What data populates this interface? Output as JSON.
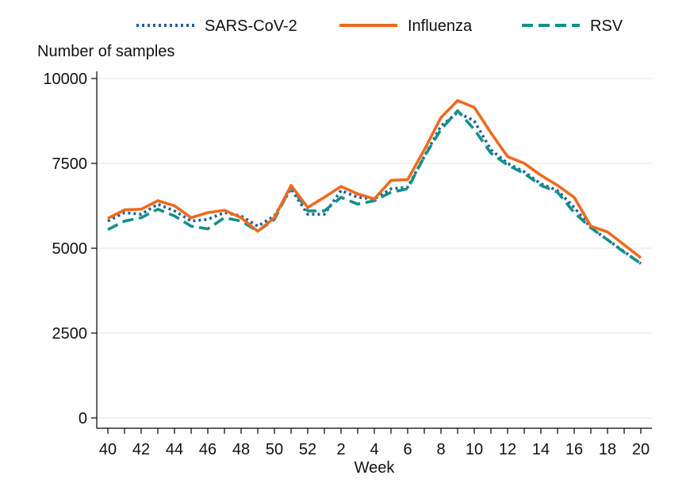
{
  "chart_data": {
    "type": "line",
    "title": "",
    "xlabel": "Week",
    "ylabel": "Number of samples",
    "ylim": [
      0,
      10000
    ],
    "yticks": [
      0,
      2500,
      5000,
      7500,
      10000
    ],
    "ytick_labels": [
      "0",
      "2500",
      "5000",
      "7500",
      "10000"
    ],
    "grid": "horizontal",
    "legend_position": "top",
    "x": [
      "40",
      "41",
      "42",
      "43",
      "44",
      "45",
      "46",
      "47",
      "48",
      "49",
      "50",
      "51",
      "52",
      "1",
      "2",
      "3",
      "4",
      "5",
      "6",
      "7",
      "8",
      "9",
      "10",
      "11",
      "12",
      "13",
      "14",
      "15",
      "16",
      "17",
      "18",
      "19",
      "20"
    ],
    "xtick_labels": [
      "40",
      "42",
      "44",
      "46",
      "48",
      "50",
      "52",
      "2",
      "4",
      "6",
      "8",
      "10",
      "12",
      "14",
      "16",
      "18",
      "20"
    ],
    "series": [
      {
        "name": "SARS-CoV-2",
        "color": "#1f5f9e",
        "dash": "dotted",
        "values": [
          5800,
          6050,
          6000,
          6300,
          6100,
          5800,
          5850,
          6050,
          5950,
          5650,
          5950,
          6750,
          6000,
          6000,
          6700,
          6500,
          6450,
          6750,
          6800,
          7700,
          8600,
          9000,
          8750,
          7900,
          7500,
          7250,
          6900,
          6700,
          6200,
          5600,
          5250,
          4900,
          4550
        ]
      },
      {
        "name": "Influenza",
        "color": "#ee6a1f",
        "dash": "solid",
        "values": [
          5880,
          6130,
          6150,
          6400,
          6250,
          5900,
          6050,
          6120,
          5900,
          5500,
          5900,
          6850,
          6200,
          6500,
          6820,
          6600,
          6450,
          7000,
          7020,
          7900,
          8850,
          9350,
          9150,
          8400,
          7700,
          7500,
          7150,
          6850,
          6500,
          5650,
          5480,
          5100,
          4720
        ]
      },
      {
        "name": "RSV",
        "color": "#119188",
        "dash": "dashed",
        "values": [
          5550,
          5800,
          5900,
          6150,
          5950,
          5650,
          5570,
          5900,
          5800,
          5500,
          5850,
          6820,
          6100,
          6100,
          6500,
          6300,
          6400,
          6650,
          6750,
          7700,
          8500,
          9050,
          8500,
          7800,
          7450,
          7200,
          6850,
          6650,
          6050,
          5600,
          5250,
          4880,
          4550
        ]
      }
    ]
  }
}
